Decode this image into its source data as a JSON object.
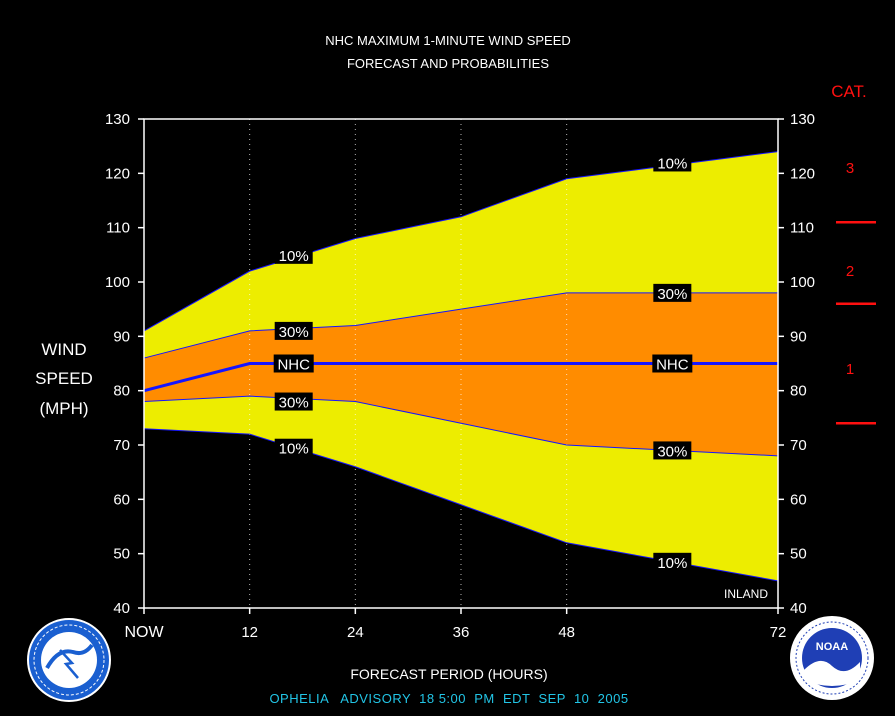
{
  "chart_data": {
    "type": "area",
    "title_line1": "NHC MAXIMUM 1-MINUTE WIND SPEED",
    "title_line2": "FORECAST AND PROBABILITIES",
    "ylabel_lines": [
      "WIND",
      "SPEED",
      "(MPH)"
    ],
    "xlabel": "FORECAST PERIOD (HOURS)",
    "advisory": "OPHELIA   ADVISORY  18 5:00  PM  EDT  SEP  10  2005",
    "x": [
      0,
      12,
      24,
      36,
      48,
      72
    ],
    "x_tick_labels": [
      "NOW",
      "12",
      "24",
      "36",
      "48",
      "72"
    ],
    "xlim": [
      0,
      72
    ],
    "ylim": [
      40,
      130
    ],
    "y_ticks": [
      40,
      50,
      60,
      70,
      80,
      90,
      100,
      110,
      120,
      130
    ],
    "series": [
      {
        "name": "10%",
        "values": [
          91,
          102,
          108,
          112,
          119,
          124
        ]
      },
      {
        "name": "30%",
        "values": [
          86,
          91,
          92,
          95,
          98,
          98
        ]
      },
      {
        "name": "NHC",
        "values": [
          80,
          85,
          85,
          85,
          85,
          85
        ]
      },
      {
        "name": "30%",
        "values": [
          78,
          79,
          78,
          74,
          70,
          68
        ]
      },
      {
        "name": "10%",
        "values": [
          73,
          72,
          66,
          59,
          52,
          45
        ]
      }
    ],
    "band_labels": [
      {
        "text": "10%",
        "x": 17,
        "y": 105
      },
      {
        "text": "30%",
        "x": 17,
        "y": 91
      },
      {
        "text": "NHC",
        "x": 17,
        "y": 85
      },
      {
        "text": "30%",
        "x": 17,
        "y": 78
      },
      {
        "text": "10%",
        "x": 17,
        "y": 69.5
      },
      {
        "text": "10%",
        "x": 60,
        "y": 122
      },
      {
        "text": "30%",
        "x": 60,
        "y": 98
      },
      {
        "text": "NHC",
        "x": 60,
        "y": 85
      },
      {
        "text": "30%",
        "x": 60,
        "y": 69
      },
      {
        "text": "10%",
        "x": 60,
        "y": 48.5
      }
    ],
    "inland_label": "INLAND",
    "category_title": "CAT.",
    "categories": [
      {
        "label": "3",
        "y": 121
      },
      {
        "label": "2",
        "y": 102
      },
      {
        "label": "1",
        "y": 84
      }
    ],
    "category_thresholds": [
      111,
      96,
      74
    ],
    "colors": {
      "outer_band": "#eded00",
      "inner_band": "#ff8c00",
      "nhc_line": "#1515ff",
      "category": "#ff1010",
      "advisory_text": "#22c5e6"
    },
    "logos": {
      "left": "NATIONAL WEATHER SERVICE",
      "right": "NOAA"
    }
  }
}
